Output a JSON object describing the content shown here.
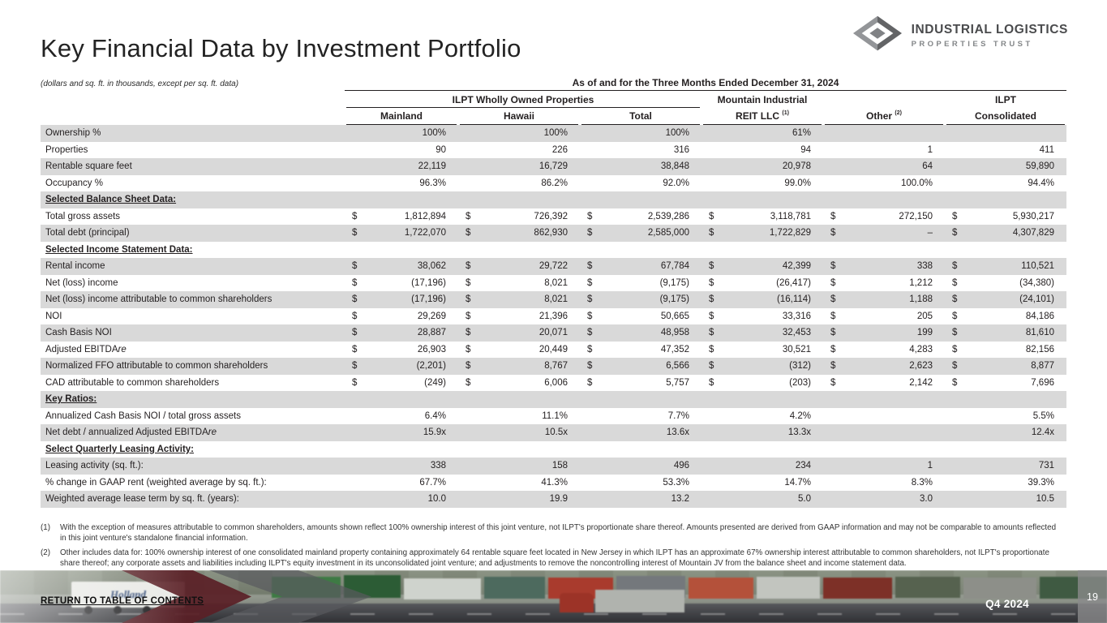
{
  "page": {
    "title": "Key Financial Data by Investment Portfolio",
    "note": "(dollars and sq. ft. in thousands, except per sq. ft. data)",
    "footer_link": "RETURN TO TABLE OF CONTENTS",
    "footer_quarter": "Q4 2024",
    "page_number": "19"
  },
  "logo": {
    "line1": "INDUSTRIAL LOGISTICS",
    "line2": "PROPERTIES TRUST"
  },
  "footer": {
    "truck_label": "Holland"
  },
  "table": {
    "period_header": "As of and for the Three Months Ended December 31, 2024",
    "group_headers": {
      "wholly_owned": "ILPT Wholly Owned Properties",
      "mountain_line1": "Mountain Industrial",
      "mountain_line2": "REIT LLC",
      "mountain_sup": "(1)",
      "other": "Other",
      "other_sup": "(2)",
      "ilpt_line1": "ILPT",
      "ilpt_line2": "Consolidated"
    },
    "columns": [
      "Mainland",
      "Hawaii",
      "Total"
    ],
    "rows": [
      {
        "label": "Ownership %",
        "type": "data",
        "dollar": false,
        "values": [
          "100%",
          "100%",
          "100%",
          "61%",
          "",
          ""
        ]
      },
      {
        "label": "Properties",
        "type": "data",
        "dollar": false,
        "values": [
          "90",
          "226",
          "316",
          "94",
          "1",
          "411"
        ]
      },
      {
        "label": "Rentable square feet",
        "type": "data",
        "dollar": false,
        "values": [
          "22,119",
          "16,729",
          "38,848",
          "20,978",
          "64",
          "59,890"
        ]
      },
      {
        "label": "Occupancy %",
        "type": "data",
        "dollar": false,
        "values": [
          "96.3%",
          "86.2%",
          "92.0%",
          "99.0%",
          "100.0%",
          "94.4%"
        ]
      },
      {
        "label": "Selected Balance Sheet Data:",
        "type": "section",
        "values": [
          "",
          "",
          "",
          "",
          "",
          ""
        ]
      },
      {
        "label": "Total gross assets",
        "type": "data",
        "dollar": true,
        "values": [
          "1,812,894",
          "726,392",
          "2,539,286",
          "3,118,781",
          "272,150",
          "5,930,217"
        ]
      },
      {
        "label": "Total debt (principal)",
        "type": "data",
        "dollar": true,
        "values": [
          "1,722,070",
          "862,930",
          "2,585,000",
          "1,722,829",
          "–",
          "4,307,829"
        ]
      },
      {
        "label": "Selected Income Statement Data:",
        "type": "section",
        "values": [
          "",
          "",
          "",
          "",
          "",
          ""
        ]
      },
      {
        "label": "Rental income",
        "type": "data",
        "dollar": true,
        "values": [
          "38,062",
          "29,722",
          "67,784",
          "42,399",
          "338",
          "110,521"
        ]
      },
      {
        "label": "Net (loss) income",
        "type": "data",
        "dollar": true,
        "values": [
          "(17,196)",
          "8,021",
          "(9,175)",
          "(26,417)",
          "1,212",
          "(34,380)"
        ]
      },
      {
        "label": "Net (loss) income attributable to common shareholders",
        "type": "data",
        "dollar": true,
        "values": [
          "(17,196)",
          "8,021",
          "(9,175)",
          "(16,114)",
          "1,188",
          "(24,101)"
        ]
      },
      {
        "label": "NOI",
        "type": "data",
        "dollar": true,
        "values": [
          "29,269",
          "21,396",
          "50,665",
          "33,316",
          "205",
          "84,186"
        ]
      },
      {
        "label": "Cash Basis NOI",
        "type": "data",
        "dollar": true,
        "values": [
          "28,887",
          "20,071",
          "48,958",
          "32,453",
          "199",
          "81,610"
        ]
      },
      {
        "label": "Adjusted EBITDAre",
        "type": "data",
        "dollar": true,
        "values": [
          "26,903",
          "20,449",
          "47,352",
          "30,521",
          "4,283",
          "82,156"
        ]
      },
      {
        "label": "Normalized FFO attributable to common shareholders",
        "type": "data",
        "dollar": true,
        "values": [
          "(2,201)",
          "8,767",
          "6,566",
          "(312)",
          "2,623",
          "8,877"
        ]
      },
      {
        "label": "CAD attributable to common shareholders",
        "type": "data",
        "dollar": true,
        "values": [
          "(249)",
          "6,006",
          "5,757",
          "(203)",
          "2,142",
          "7,696"
        ]
      },
      {
        "label": "Key Ratios:",
        "type": "section",
        "values": [
          "",
          "",
          "",
          "",
          "",
          ""
        ]
      },
      {
        "label": "Annualized Cash Basis NOI / total gross assets",
        "type": "data",
        "dollar": false,
        "values": [
          "6.4%",
          "11.1%",
          "7.7%",
          "4.2%",
          "",
          "5.5%"
        ]
      },
      {
        "label": "Net debt / annualized Adjusted EBITDAre",
        "type": "data",
        "dollar": false,
        "values": [
          "15.9x",
          "10.5x",
          "13.6x",
          "13.3x",
          "",
          "12.4x"
        ]
      },
      {
        "label": "Select Quarterly Leasing Activity:",
        "type": "section",
        "values": [
          "",
          "",
          "",
          "",
          "",
          ""
        ]
      },
      {
        "label": "Leasing activity (sq. ft.):",
        "type": "data",
        "dollar": false,
        "values": [
          "338",
          "158",
          "496",
          "234",
          "1",
          "731"
        ]
      },
      {
        "label": "% change in GAAP rent (weighted average by sq. ft.):",
        "type": "data",
        "dollar": false,
        "values": [
          "67.7%",
          "41.3%",
          "53.3%",
          "14.7%",
          "8.3%",
          "39.3%"
        ]
      },
      {
        "label": "Weighted average lease term by sq. ft. (years):",
        "type": "data",
        "dollar": false,
        "values": [
          "10.0",
          "19.9",
          "13.2",
          "5.0",
          "3.0",
          "10.5"
        ]
      }
    ]
  },
  "footnotes": [
    {
      "num": "(1)",
      "text": "With the exception of measures attributable to common shareholders, amounts shown reflect 100% ownership interest of this joint venture, not ILPT's proportionate share thereof. Amounts presented are derived from GAAP information and may not be comparable to amounts reflected in this joint venture's standalone financial information."
    },
    {
      "num": "(2)",
      "text": "Other includes data for: 100% ownership interest of one consolidated mainland property containing approximately 64 rentable square feet located in New Jersey in which ILPT has an approximate 67% ownership interest attributable to common shareholders, not ILPT's proportionate share thereof; any corporate assets and liabilities including ILPT's equity investment in its unconsolidated joint venture; and adjustments to remove the noncontrolling interest of Mountain JV from the balance sheet and income statement data."
    }
  ]
}
